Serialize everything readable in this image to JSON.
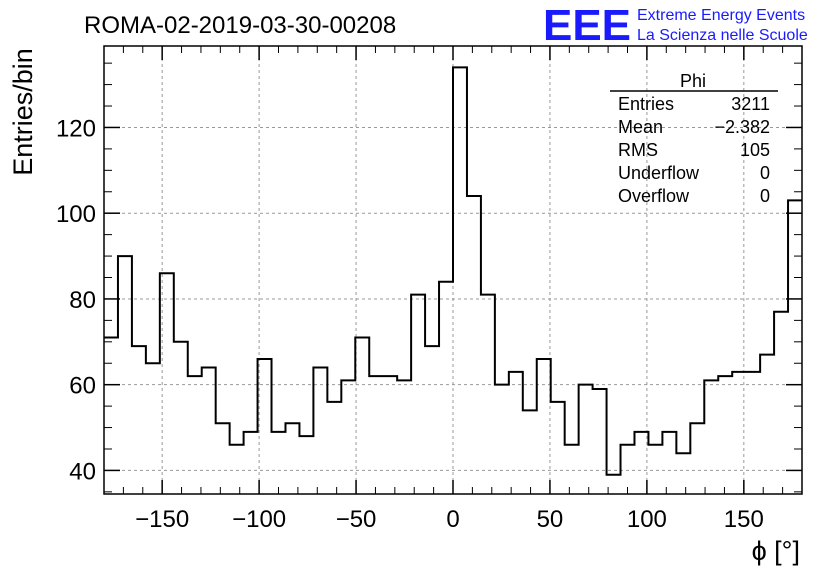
{
  "chart_data": {
    "type": "histogram",
    "title": "ROMA-02-2019-03-30-00208",
    "xlabel": "ϕ [°]",
    "ylabel": "Entries/bin",
    "xlim": [
      -180,
      180
    ],
    "ylim": [
      34.5,
      139
    ],
    "grid": true,
    "bin_edges_start": -180,
    "bin_width": 7.2,
    "values": [
      71,
      90,
      69,
      65,
      86,
      70,
      62,
      64,
      51,
      46,
      49,
      66,
      49,
      51,
      48,
      64,
      56,
      61,
      71,
      62,
      62,
      61,
      81,
      69,
      84,
      134,
      104,
      81,
      60,
      63,
      54,
      66,
      56,
      46,
      60,
      59,
      39,
      46,
      49,
      46,
      49,
      44,
      51,
      61,
      62,
      63,
      63,
      67,
      77,
      103
    ],
    "xticks": [
      -150,
      -100,
      -50,
      0,
      50,
      100,
      150
    ],
    "xtick_labels": [
      "−150",
      "−100",
      "−50",
      "0",
      "50",
      "100",
      "150"
    ],
    "yticks": [
      40,
      60,
      80,
      100,
      120
    ],
    "ytick_labels": [
      "40",
      "60",
      "80",
      "100",
      "120"
    ]
  },
  "stats_box": {
    "title": "Phi",
    "rows": [
      {
        "label": "Entries",
        "value": "3211"
      },
      {
        "label": "Mean",
        "value": "−2.382"
      },
      {
        "label": "RMS",
        "value": "105"
      },
      {
        "label": "Underflow",
        "value": "0"
      },
      {
        "label": "Overflow",
        "value": "0"
      }
    ]
  },
  "logo": {
    "mark": "EEE",
    "line1": "Extreme Energy Events",
    "line2": "La Scienza nelle Scuole",
    "color": "#1a1aff"
  }
}
